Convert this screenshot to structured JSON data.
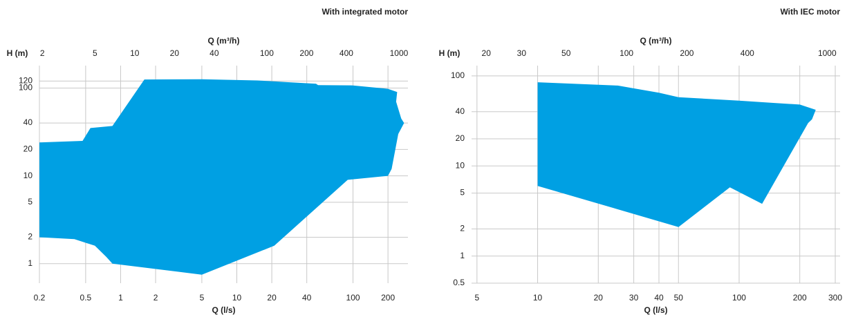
{
  "chart_data": [
    {
      "type": "area",
      "title": "With integrated motor",
      "x_label": "Q (l/s)",
      "x2_label": "Q (m³/h)",
      "y_label": "H (m)",
      "x": [
        0.2,
        0.47,
        0.55,
        0.85,
        1.6,
        5,
        15,
        48,
        50,
        100,
        200,
        240,
        235,
        260,
        275,
        245,
        215,
        200,
        90,
        21,
        5,
        0.85,
        0.75,
        0.6,
        0.4,
        0.2
      ],
      "values": [
        24,
        25,
        35,
        37,
        125,
        126,
        122,
        112,
        108,
        107,
        98,
        90,
        70,
        45,
        40,
        30,
        12,
        10,
        9,
        1.6,
        0.75,
        1.0,
        1.2,
        1.6,
        1.9,
        2.0
      ],
      "color": "#00a0e3",
      "xlim": [
        0.2,
        297
      ],
      "xticks": [
        0.2,
        0.5,
        1,
        2,
        5,
        10,
        20,
        40,
        100,
        200
      ],
      "x2lim": [
        1.9,
        1170
      ],
      "x2ticks": [
        2,
        5,
        10,
        20,
        40,
        100,
        200,
        400,
        1000
      ],
      "ylim": [
        0.6,
        180
      ],
      "yticks": [
        1,
        2,
        5,
        10,
        20,
        40,
        100,
        120
      ],
      "log_x": true,
      "log_y": true,
      "grid": true
    },
    {
      "type": "area",
      "title": "With IEC motor",
      "x_label": "Q (l/s)",
      "x2_label": "Q (m³/h)",
      "y_label": "H (m)",
      "x": [
        10,
        25,
        40,
        50,
        100,
        150,
        200,
        240,
        230,
        220,
        130,
        90,
        50,
        10
      ],
      "values": [
        85,
        78,
        65,
        58,
        53,
        50,
        48,
        42,
        33,
        30,
        3.8,
        5.8,
        2.1,
        6
      ],
      "color": "#00a0e3",
      "xlim": [
        4.7,
        317
      ],
      "xticks": [
        5,
        10,
        20,
        30,
        40,
        50,
        100,
        200,
        300
      ],
      "x2lim": [
        16.9,
        1160
      ],
      "x2ticks": [
        20,
        30,
        50,
        100,
        200,
        400,
        1000
      ],
      "ylim": [
        0.5,
        130
      ],
      "yticks": [
        0.5,
        1,
        2,
        5,
        10,
        20,
        40,
        100
      ],
      "log_x": true,
      "log_y": true,
      "grid": true
    }
  ]
}
